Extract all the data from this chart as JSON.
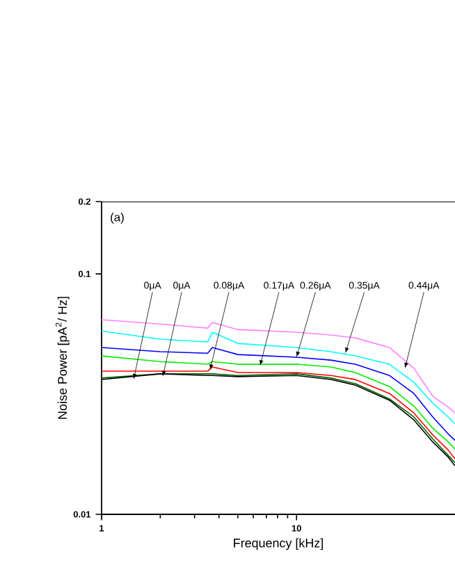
{
  "chart_data": {
    "type": "line",
    "xlabel": "Frequency [kHz]",
    "ylabel": "Noise Power [pA$^{2}$/ Hz]",
    "log": "xy",
    "grid": false,
    "marker": "none",
    "line_style": "solid",
    "xlim": [
      1,
      65
    ],
    "ylim": [
      0.01,
      0.2
    ],
    "xticks": [
      1,
      10
    ],
    "yticks": [
      0.01,
      0.1,
      0.2
    ],
    "x": [
      1,
      2,
      3.5,
      3.7,
      5,
      10,
      15,
      20,
      30,
      40,
      50,
      60,
      65
    ],
    "series": [
      {
        "color": "#ff80ff",
        "values": [
          0.0645,
          0.0619,
          0.0595,
          0.0628,
          0.0587,
          0.0572,
          0.0557,
          0.0542,
          0.0494,
          0.0405,
          0.031,
          0.0279,
          0.0264
        ]
      },
      {
        "color": "#00ffff",
        "values": [
          0.0579,
          0.0535,
          0.0521,
          0.0572,
          0.0514,
          0.0494,
          0.0475,
          0.0456,
          0.0421,
          0.0354,
          0.029,
          0.0254,
          0.0238
        ]
      },
      {
        "color": "#0000ff",
        "values": [
          0.0494,
          0.0475,
          0.0468,
          0.0494,
          0.0462,
          0.045,
          0.0438,
          0.0421,
          0.0378,
          0.0318,
          0.0254,
          0.0216,
          0.0203
        ]
      },
      {
        "color": "#00ee00",
        "values": [
          0.0456,
          0.0432,
          0.0421,
          0.0432,
          0.0421,
          0.0421,
          0.041,
          0.0389,
          0.034,
          0.0282,
          0.0228,
          0.02,
          0.0187
        ]
      },
      {
        "color": "#ff0000",
        "values": [
          0.0394,
          0.0394,
          0.0394,
          0.041,
          0.0389,
          0.0389,
          0.0378,
          0.0364,
          0.0318,
          0.0264,
          0.0214,
          0.0185,
          0.017
        ]
      },
      {
        "color": "#006400",
        "values": [
          0.0369,
          0.0384,
          0.0384,
          0.0384,
          0.0378,
          0.0384,
          0.0369,
          0.035,
          0.0302,
          0.0254,
          0.0206,
          0.0176,
          0.0164
        ]
      },
      {
        "color": "#000000",
        "values": [
          0.0364,
          0.0384,
          0.0378,
          0.0378,
          0.0374,
          0.0378,
          0.0364,
          0.0345,
          0.0298,
          0.0247,
          0.02,
          0.0173,
          0.0159
        ]
      }
    ],
    "annotations": [
      "(a)",
      {
        "text": "0μA",
        "x": 1.46,
        "y": 0.0364
      },
      {
        "text": "0μA",
        "x": 2.06,
        "y": 0.0374
      },
      {
        "text": "0.08μA",
        "x": 3.6,
        "y": 0.0399
      },
      {
        "text": "0.17μA",
        "x": 6.5,
        "y": 0.0415
      },
      {
        "text": "0.26μA",
        "x": 10,
        "y": 0.045
      },
      {
        "text": "0.35μA",
        "x": 17.8,
        "y": 0.0468
      },
      {
        "text": "0.44μA",
        "x": 36,
        "y": 0.0405
      }
    ]
  }
}
